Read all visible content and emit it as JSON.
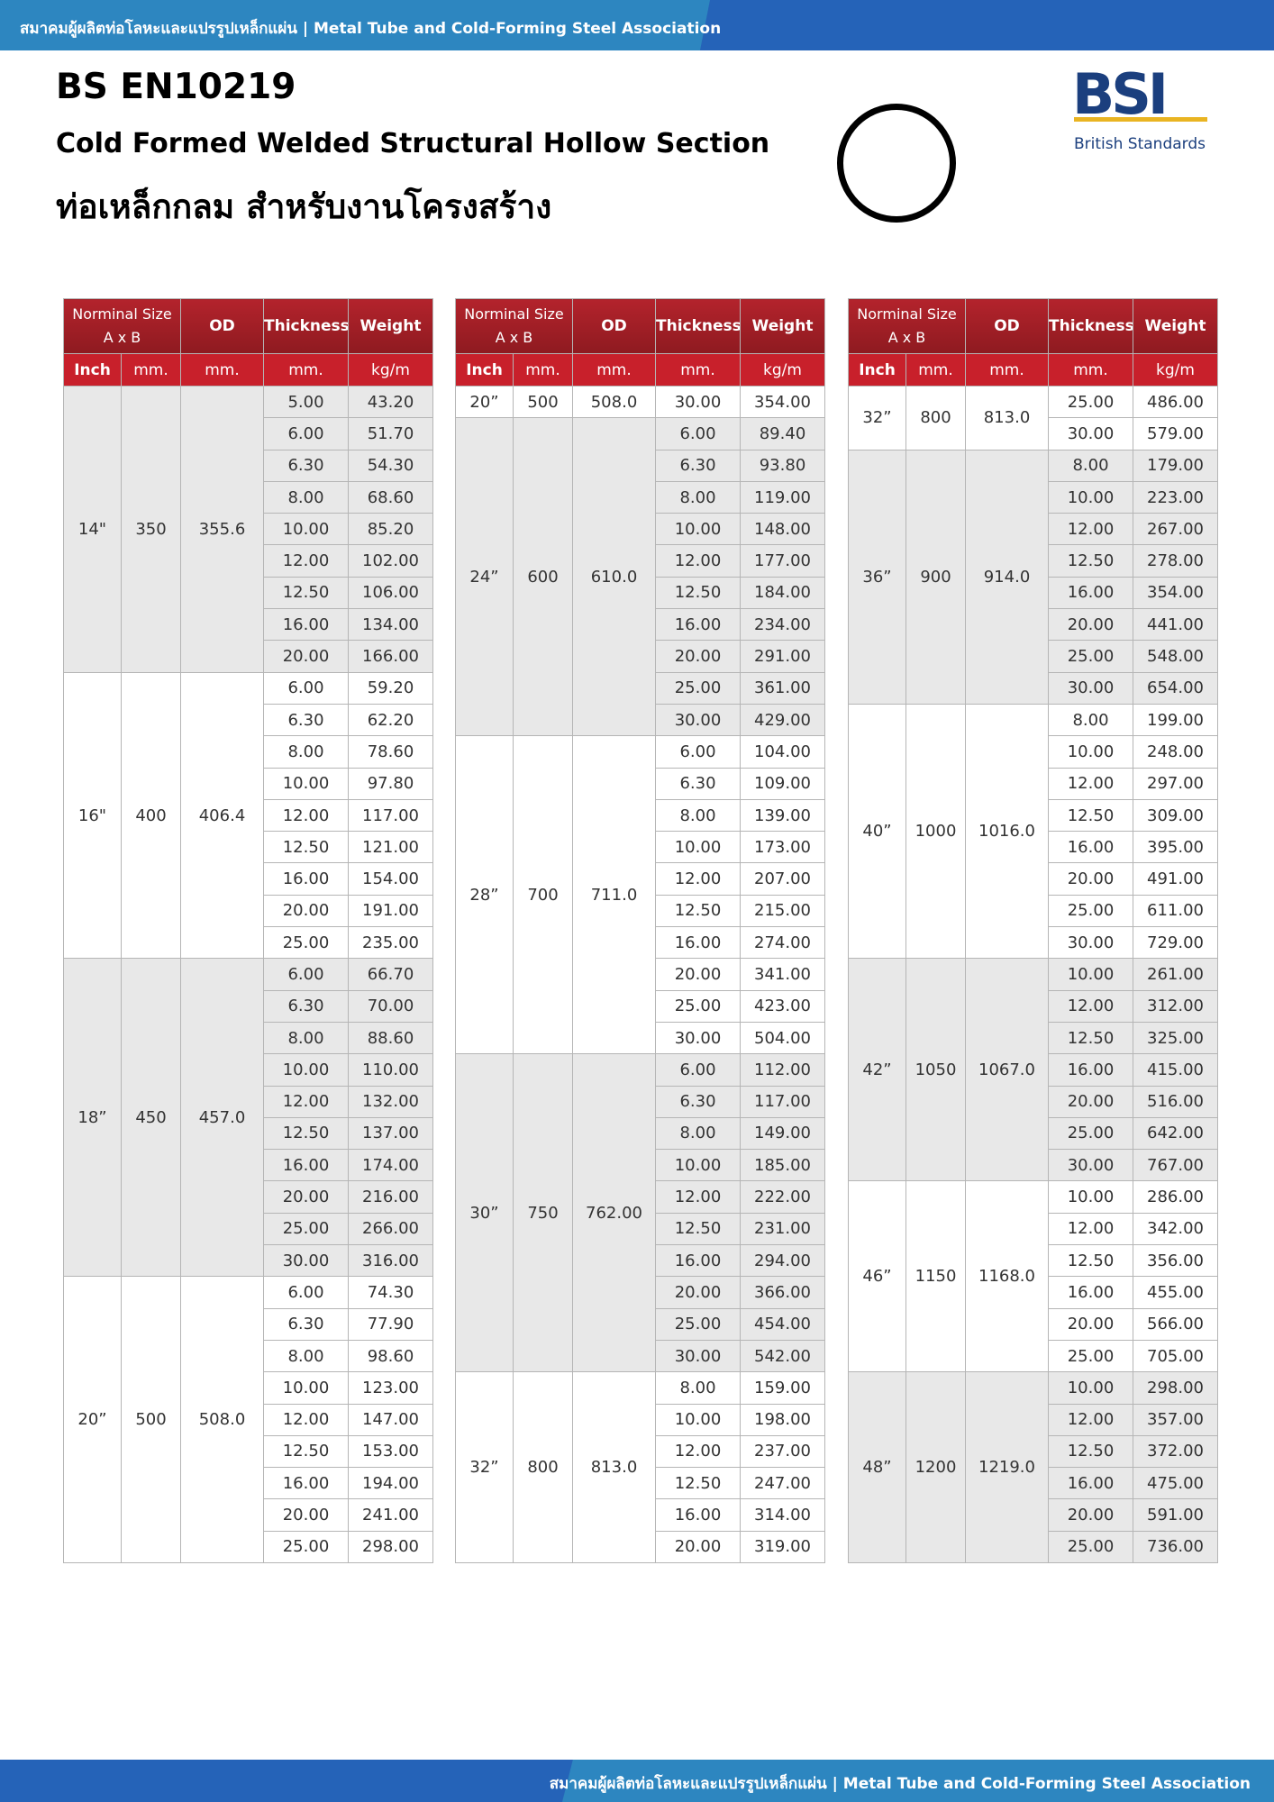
{
  "header": {
    "banner": "สมาคมผู้ผลิตท่อโลหะและแปรรูปเหล็กแผ่น | Metal Tube and Cold-Forming Steel Association",
    "standard": "BS EN10219",
    "subtitle": "Cold Formed Welded Structural Hollow Section",
    "thai_title": "ท่อเหล็กกลม สำหรับงานโครงสร้าง",
    "logo": "BSI",
    "logo_caption": "British Standards"
  },
  "columns": {
    "size": [
      "Norminal  Size",
      "A x B"
    ],
    "od": "OD",
    "thickness": "Thickness",
    "weight": "Weight",
    "units": [
      "Inch",
      "mm.",
      "mm.",
      "mm.",
      "kg/m"
    ]
  },
  "tables": [
    {
      "groups": [
        {
          "inch": "14\"",
          "mm": "350",
          "od": "355.6",
          "rows": [
            [
              "5.00",
              "43.20"
            ],
            [
              "6.00",
              "51.70"
            ],
            [
              "6.30",
              "54.30"
            ],
            [
              "8.00",
              "68.60"
            ],
            [
              "10.00",
              "85.20"
            ],
            [
              "12.00",
              "102.00"
            ],
            [
              "12.50",
              "106.00"
            ],
            [
              "16.00",
              "134.00"
            ],
            [
              "20.00",
              "166.00"
            ]
          ]
        },
        {
          "inch": "16\"",
          "mm": "400",
          "od": "406.4",
          "rows": [
            [
              "6.00",
              "59.20"
            ],
            [
              "6.30",
              "62.20"
            ],
            [
              "8.00",
              "78.60"
            ],
            [
              "10.00",
              "97.80"
            ],
            [
              "12.00",
              "117.00"
            ],
            [
              "12.50",
              "121.00"
            ],
            [
              "16.00",
              "154.00"
            ],
            [
              "20.00",
              "191.00"
            ],
            [
              "25.00",
              "235.00"
            ]
          ]
        },
        {
          "inch": "18”",
          "mm": "450",
          "od": "457.0",
          "rows": [
            [
              "6.00",
              "66.70"
            ],
            [
              "6.30",
              "70.00"
            ],
            [
              "8.00",
              "88.60"
            ],
            [
              "10.00",
              "110.00"
            ],
            [
              "12.00",
              "132.00"
            ],
            [
              "12.50",
              "137.00"
            ],
            [
              "16.00",
              "174.00"
            ],
            [
              "20.00",
              "216.00"
            ],
            [
              "25.00",
              "266.00"
            ],
            [
              "30.00",
              "316.00"
            ]
          ]
        },
        {
          "inch": "20”",
          "mm": "500",
          "od": "508.0",
          "rows": [
            [
              "6.00",
              "74.30"
            ],
            [
              "6.30",
              "77.90"
            ],
            [
              "8.00",
              "98.60"
            ],
            [
              "10.00",
              "123.00"
            ],
            [
              "12.00",
              "147.00"
            ],
            [
              "12.50",
              "153.00"
            ],
            [
              "16.00",
              "194.00"
            ],
            [
              "20.00",
              "241.00"
            ],
            [
              "25.00",
              "298.00"
            ]
          ]
        }
      ]
    },
    {
      "groups": [
        {
          "inch": "20”",
          "mm": "500",
          "od": "508.0",
          "rows": [
            [
              "30.00",
              "354.00"
            ]
          ]
        },
        {
          "inch": "24”",
          "mm": "600",
          "od": "610.0",
          "rows": [
            [
              "6.00",
              "89.40"
            ],
            [
              "6.30",
              "93.80"
            ],
            [
              "8.00",
              "119.00"
            ],
            [
              "10.00",
              "148.00"
            ],
            [
              "12.00",
              "177.00"
            ],
            [
              "12.50",
              "184.00"
            ],
            [
              "16.00",
              "234.00"
            ],
            [
              "20.00",
              "291.00"
            ],
            [
              "25.00",
              "361.00"
            ],
            [
              "30.00",
              "429.00"
            ]
          ]
        },
        {
          "inch": "28”",
          "mm": "700",
          "od": "711.0",
          "rows": [
            [
              "6.00",
              "104.00"
            ],
            [
              "6.30",
              "109.00"
            ],
            [
              "8.00",
              "139.00"
            ],
            [
              "10.00",
              "173.00"
            ],
            [
              "12.00",
              "207.00"
            ],
            [
              "12.50",
              "215.00"
            ],
            [
              "16.00",
              "274.00"
            ],
            [
              "20.00",
              "341.00"
            ],
            [
              "25.00",
              "423.00"
            ],
            [
              "30.00",
              "504.00"
            ]
          ]
        },
        {
          "inch": "30”",
          "mm": "750",
          "od": "762.00",
          "rows": [
            [
              "6.00",
              "112.00"
            ],
            [
              "6.30",
              "117.00"
            ],
            [
              "8.00",
              "149.00"
            ],
            [
              "10.00",
              "185.00"
            ],
            [
              "12.00",
              "222.00"
            ],
            [
              "12.50",
              "231.00"
            ],
            [
              "16.00",
              "294.00"
            ],
            [
              "20.00",
              "366.00"
            ],
            [
              "25.00",
              "454.00"
            ],
            [
              "30.00",
              "542.00"
            ]
          ]
        },
        {
          "inch": "32”",
          "mm": "800",
          "od": "813.0",
          "rows": [
            [
              "8.00",
              "159.00"
            ],
            [
              "10.00",
              "198.00"
            ],
            [
              "12.00",
              "237.00"
            ],
            [
              "12.50",
              "247.00"
            ],
            [
              "16.00",
              "314.00"
            ],
            [
              "20.00",
              "319.00"
            ]
          ]
        }
      ]
    },
    {
      "groups": [
        {
          "inch": "32”",
          "mm": "800",
          "od": "813.0",
          "rows": [
            [
              "25.00",
              "486.00"
            ],
            [
              "30.00",
              "579.00"
            ]
          ]
        },
        {
          "inch": "36”",
          "mm": "900",
          "od": "914.0",
          "rows": [
            [
              "8.00",
              "179.00"
            ],
            [
              "10.00",
              "223.00"
            ],
            [
              "12.00",
              "267.00"
            ],
            [
              "12.50",
              "278.00"
            ],
            [
              "16.00",
              "354.00"
            ],
            [
              "20.00",
              "441.00"
            ],
            [
              "25.00",
              "548.00"
            ],
            [
              "30.00",
              "654.00"
            ]
          ]
        },
        {
          "inch": "40”",
          "mm": "1000",
          "od": "1016.0",
          "rows": [
            [
              "8.00",
              "199.00"
            ],
            [
              "10.00",
              "248.00"
            ],
            [
              "12.00",
              "297.00"
            ],
            [
              "12.50",
              "309.00"
            ],
            [
              "16.00",
              "395.00"
            ],
            [
              "20.00",
              "491.00"
            ],
            [
              "25.00",
              "611.00"
            ],
            [
              "30.00",
              "729.00"
            ]
          ]
        },
        {
          "inch": "42”",
          "mm": "1050",
          "od": "1067.0",
          "rows": [
            [
              "10.00",
              "261.00"
            ],
            [
              "12.00",
              "312.00"
            ],
            [
              "12.50",
              "325.00"
            ],
            [
              "16.00",
              "415.00"
            ],
            [
              "20.00",
              "516.00"
            ],
            [
              "25.00",
              "642.00"
            ],
            [
              "30.00",
              "767.00"
            ]
          ]
        },
        {
          "inch": "46”",
          "mm": "1150",
          "od": "1168.0",
          "rows": [
            [
              "10.00",
              "286.00"
            ],
            [
              "12.00",
              "342.00"
            ],
            [
              "12.50",
              "356.00"
            ],
            [
              "16.00",
              "455.00"
            ],
            [
              "20.00",
              "566.00"
            ],
            [
              "25.00",
              "705.00"
            ]
          ]
        },
        {
          "inch": "48”",
          "mm": "1200",
          "od": "1219.0",
          "rows": [
            [
              "10.00",
              "298.00"
            ],
            [
              "12.00",
              "357.00"
            ],
            [
              "12.50",
              "372.00"
            ],
            [
              "16.00",
              "475.00"
            ],
            [
              "20.00",
              "591.00"
            ],
            [
              "25.00",
              "736.00"
            ]
          ]
        }
      ]
    }
  ]
}
